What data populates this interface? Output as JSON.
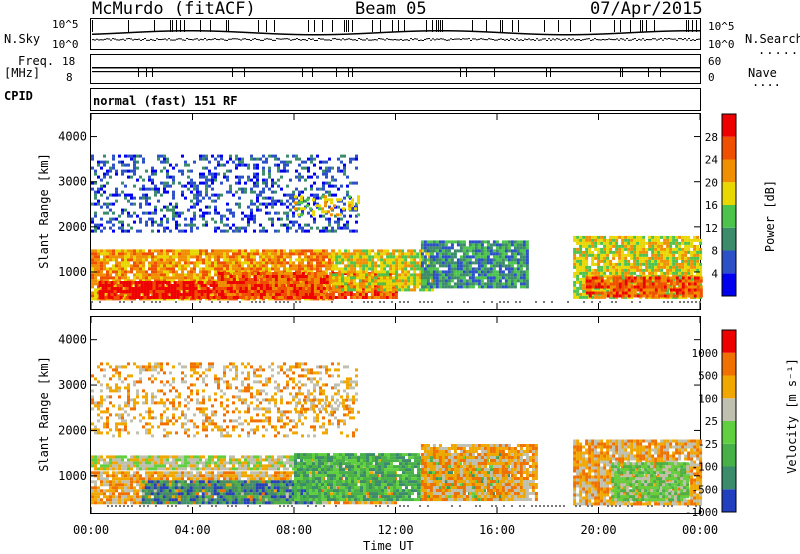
{
  "header": {
    "station": "McMurdo (fitACF)",
    "beam": "Beam 05",
    "date": "07/Apr/2015"
  },
  "top_panels": {
    "nsky_label": "N.Sky",
    "nsky_ticks": [
      "10^5",
      "10^0"
    ],
    "nsearch_label": "N.Search",
    "nsearch_ticks": [
      "10^5",
      "10^0"
    ],
    "freq_label_1": "Freq.",
    "freq_label_2": "[MHz]",
    "freq_ticks": [
      "18",
      "8"
    ],
    "nave_label": "Nave",
    "nave_ticks": [
      "60",
      "0"
    ],
    "cpid_label": "CPID",
    "cpid_text": "normal (fast) 151 RF"
  },
  "chart_data": [
    {
      "type": "heatmap",
      "title": "Power",
      "ylabel": "Slant Range [km]",
      "xlabel": "",
      "ylim": [
        180,
        4500
      ],
      "yticks": [
        1000,
        2000,
        3000,
        4000
      ],
      "xticks": [
        "00:00",
        "04:00",
        "08:00",
        "12:00",
        "16:00",
        "20:00",
        "00:00"
      ],
      "colorbar": {
        "label": "Power [dB]",
        "ticks": [
          "28",
          "24",
          "20",
          "16",
          "12",
          "8",
          "4"
        ],
        "colors": [
          "#0000ee",
          "#2c50c8",
          "#3c8c6c",
          "#4cc44c",
          "#e8d800",
          "#f09000",
          "#ee5000",
          "#ee0000"
        ]
      },
      "regions": [
        {
          "t0": 0.0,
          "t1": 9.5,
          "r0": 400,
          "r1": 1500,
          "level": 5
        },
        {
          "t0": 0.3,
          "t1": 9.0,
          "r0": 450,
          "r1": 800,
          "level": 7
        },
        {
          "t0": 5.0,
          "t1": 12.0,
          "r0": 450,
          "r1": 1000,
          "level": 6
        },
        {
          "t0": 9.5,
          "t1": 13.5,
          "r0": 600,
          "r1": 1500,
          "level": 4
        },
        {
          "t0": 13.0,
          "t1": 17.2,
          "r0": 700,
          "r1": 1700,
          "level": 2
        },
        {
          "t0": 19.0,
          "t1": 24.0,
          "r0": 450,
          "r1": 1800,
          "level": 4
        },
        {
          "t0": 19.5,
          "t1": 24.0,
          "r0": 500,
          "r1": 900,
          "level": 6
        },
        {
          "t0": 0.0,
          "t1": 10.5,
          "r0": 1900,
          "r1": 3600,
          "level": 1
        },
        {
          "t0": 8.0,
          "t1": 10.5,
          "r0": 2300,
          "r1": 2700,
          "level": 4
        }
      ]
    },
    {
      "type": "heatmap",
      "title": "Velocity",
      "ylabel": "Slant Range [km]",
      "xlabel": "Time UT",
      "ylim": [
        180,
        4500
      ],
      "yticks": [
        1000,
        2000,
        3000,
        4000
      ],
      "xticks": [
        "00:00",
        "04:00",
        "08:00",
        "12:00",
        "16:00",
        "20:00",
        "00:00"
      ],
      "colorbar": {
        "label": "Velocity [m s⁻¹]",
        "ticks": [
          "1000",
          "500",
          "100",
          "25",
          "-25",
          "-100",
          "-500",
          "-1000"
        ],
        "colors": [
          "#2040c0",
          "#3c8c6c",
          "#48b048",
          "#60d040",
          "#c0c0b0",
          "#f0a800",
          "#f07000",
          "#ee0000"
        ]
      },
      "regions": [
        {
          "t0": 0.0,
          "t1": 12.0,
          "r0": 400,
          "r1": 1100,
          "level": 5
        },
        {
          "t0": 0.0,
          "t1": 11.5,
          "r0": 1150,
          "r1": 1450,
          "level": 4
        },
        {
          "t0": 2.0,
          "t1": 9.0,
          "r0": 400,
          "r1": 900,
          "level": 1
        },
        {
          "t0": 8.0,
          "t1": 16.5,
          "r0": 500,
          "r1": 1500,
          "level": 2
        },
        {
          "t0": 13.0,
          "t1": 17.5,
          "r0": 500,
          "r1": 1700,
          "level": 5
        },
        {
          "t0": 19.0,
          "t1": 24.0,
          "r0": 400,
          "r1": 1800,
          "level": 5
        },
        {
          "t0": 20.5,
          "t1": 23.5,
          "r0": 500,
          "r1": 1300,
          "level": 3
        },
        {
          "t0": 0.0,
          "t1": 10.5,
          "r0": 1900,
          "r1": 3500,
          "level": 5
        },
        {
          "t0": 8.0,
          "t1": 10.5,
          "r0": 2400,
          "r1": 2700,
          "level": 5
        }
      ]
    }
  ],
  "colors": {
    "power": [
      "#0000ee",
      "#2c50c8",
      "#3c8c6c",
      "#4cc44c",
      "#e8d800",
      "#f09000",
      "#ee5000",
      "#ee0000"
    ],
    "velocity": [
      "#2040c0",
      "#3c8c6c",
      "#48b048",
      "#60d040",
      "#c0c0b0",
      "#f0a800",
      "#f07000",
      "#ee0000"
    ]
  }
}
